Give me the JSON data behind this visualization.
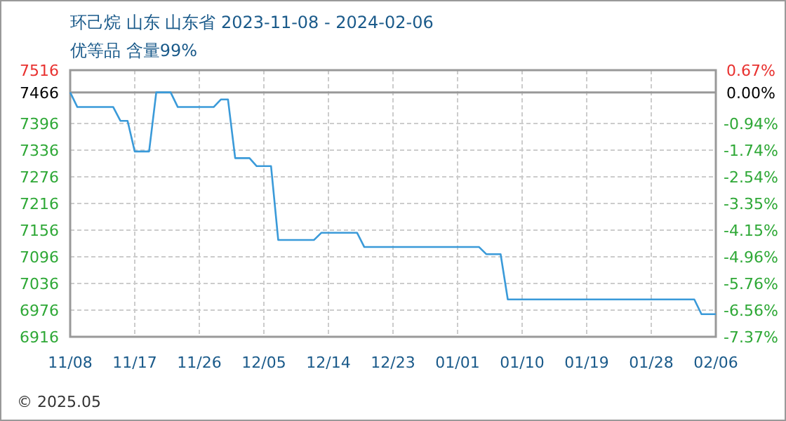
{
  "chart_data": {
    "type": "line",
    "title": "环己烷 山东 山东省 2023-11-08 - 2024-02-06",
    "subtitle": "优等品 含量99%",
    "annotations": [
      "© 2025.05"
    ],
    "series": [
      {
        "color": "#3a9ad9",
        "x": [
          "2023-11-08",
          "2023-11-09",
          "2023-11-14",
          "2023-11-15",
          "2023-11-16",
          "2023-11-17",
          "2023-11-19",
          "2023-11-20",
          "2023-11-22",
          "2023-11-23",
          "2023-11-28",
          "2023-11-29",
          "2023-11-30",
          "2023-12-01",
          "2023-12-03",
          "2023-12-04",
          "2023-12-06",
          "2023-12-07",
          "2023-12-12",
          "2023-12-13",
          "2023-12-18",
          "2023-12-19",
          "2024-01-04",
          "2024-01-05",
          "2024-01-07",
          "2024-01-08",
          "2024-02-03",
          "2024-02-04",
          "2024-02-06"
        ],
        "values": [
          7466,
          7433,
          7433,
          7402,
          7402,
          7333,
          7333,
          7466,
          7466,
          7433,
          7433,
          7450,
          7450,
          7318,
          7318,
          7300,
          7300,
          7134,
          7134,
          7150,
          7150,
          7118,
          7118,
          7102,
          7102,
          7000,
          7000,
          6967,
          6967
        ]
      }
    ],
    "xlim": [
      "2023-11-08",
      "2024-02-06"
    ],
    "xticks": [
      {
        "value": "2023-11-08",
        "label": "11/08"
      },
      {
        "value": "2023-11-17",
        "label": "11/17"
      },
      {
        "value": "2023-11-26",
        "label": "11/26"
      },
      {
        "value": "2023-12-05",
        "label": "12/05"
      },
      {
        "value": "2023-12-14",
        "label": "12/14"
      },
      {
        "value": "2023-12-23",
        "label": "12/23"
      },
      {
        "value": "2024-01-01",
        "label": "01/01"
      },
      {
        "value": "2024-01-10",
        "label": "01/10"
      },
      {
        "value": "2024-01-19",
        "label": "01/19"
      },
      {
        "value": "2024-01-28",
        "label": "01/28"
      },
      {
        "value": "2024-02-06",
        "label": "02/06"
      }
    ],
    "ylim": [
      6916,
      7516
    ],
    "yticks": [
      7516,
      7466,
      7396,
      7336,
      7276,
      7216,
      7156,
      7096,
      7036,
      6976,
      6916
    ],
    "y2lim": [
      -7.37,
      0.67
    ],
    "y2ticks": [
      {
        "value": 0.67,
        "label": "0.67%"
      },
      {
        "value": 0,
        "label": "0.00%"
      },
      {
        "value": -0.94,
        "label": "-0.94%"
      },
      {
        "value": -1.74,
        "label": "-1.74%"
      },
      {
        "value": -2.54,
        "label": "-2.54%"
      },
      {
        "value": -3.35,
        "label": "-3.35%"
      },
      {
        "value": -4.15,
        "label": "-4.15%"
      },
      {
        "value": -4.96,
        "label": "-4.96%"
      },
      {
        "value": -5.76,
        "label": "-5.76%"
      },
      {
        "value": -6.56,
        "label": "-6.56%"
      },
      {
        "value": -7.37,
        "label": "-7.37%"
      }
    ],
    "ref_lines": [
      {
        "axis": "y",
        "value": 7466,
        "color": "#999999"
      }
    ],
    "grid": true,
    "marker": "none",
    "line_style": "solid"
  }
}
